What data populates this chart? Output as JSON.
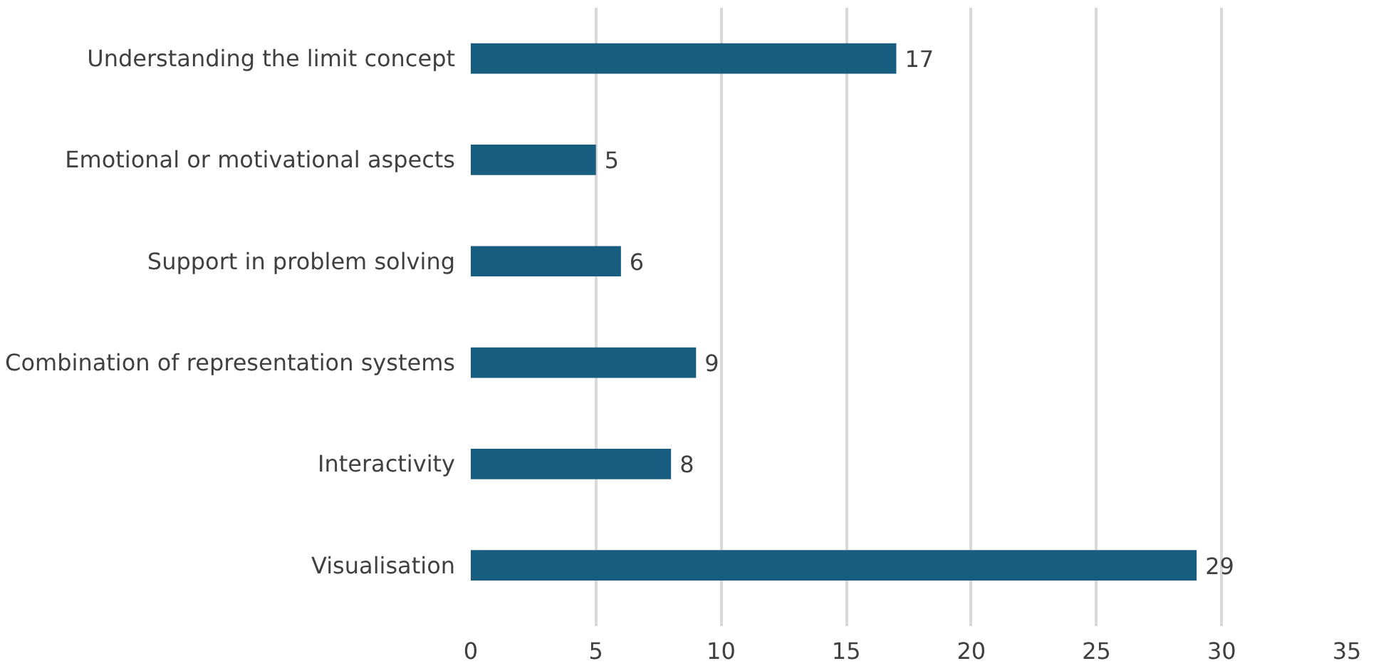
{
  "chart_data": {
    "type": "bar",
    "orientation": "horizontal",
    "categories": [
      "Understanding the limit concept",
      "Emotional or motivational aspects",
      "Support in problem solving",
      "Combination of representation systems",
      "Interactivity",
      "Visualisation"
    ],
    "values": [
      17,
      5,
      6,
      9,
      8,
      29
    ],
    "color": "#175d80",
    "xlim": [
      0,
      35
    ],
    "xticks": [
      0,
      5,
      10,
      15,
      20,
      25,
      30,
      35
    ],
    "grid": "x",
    "data_labels": true
  }
}
